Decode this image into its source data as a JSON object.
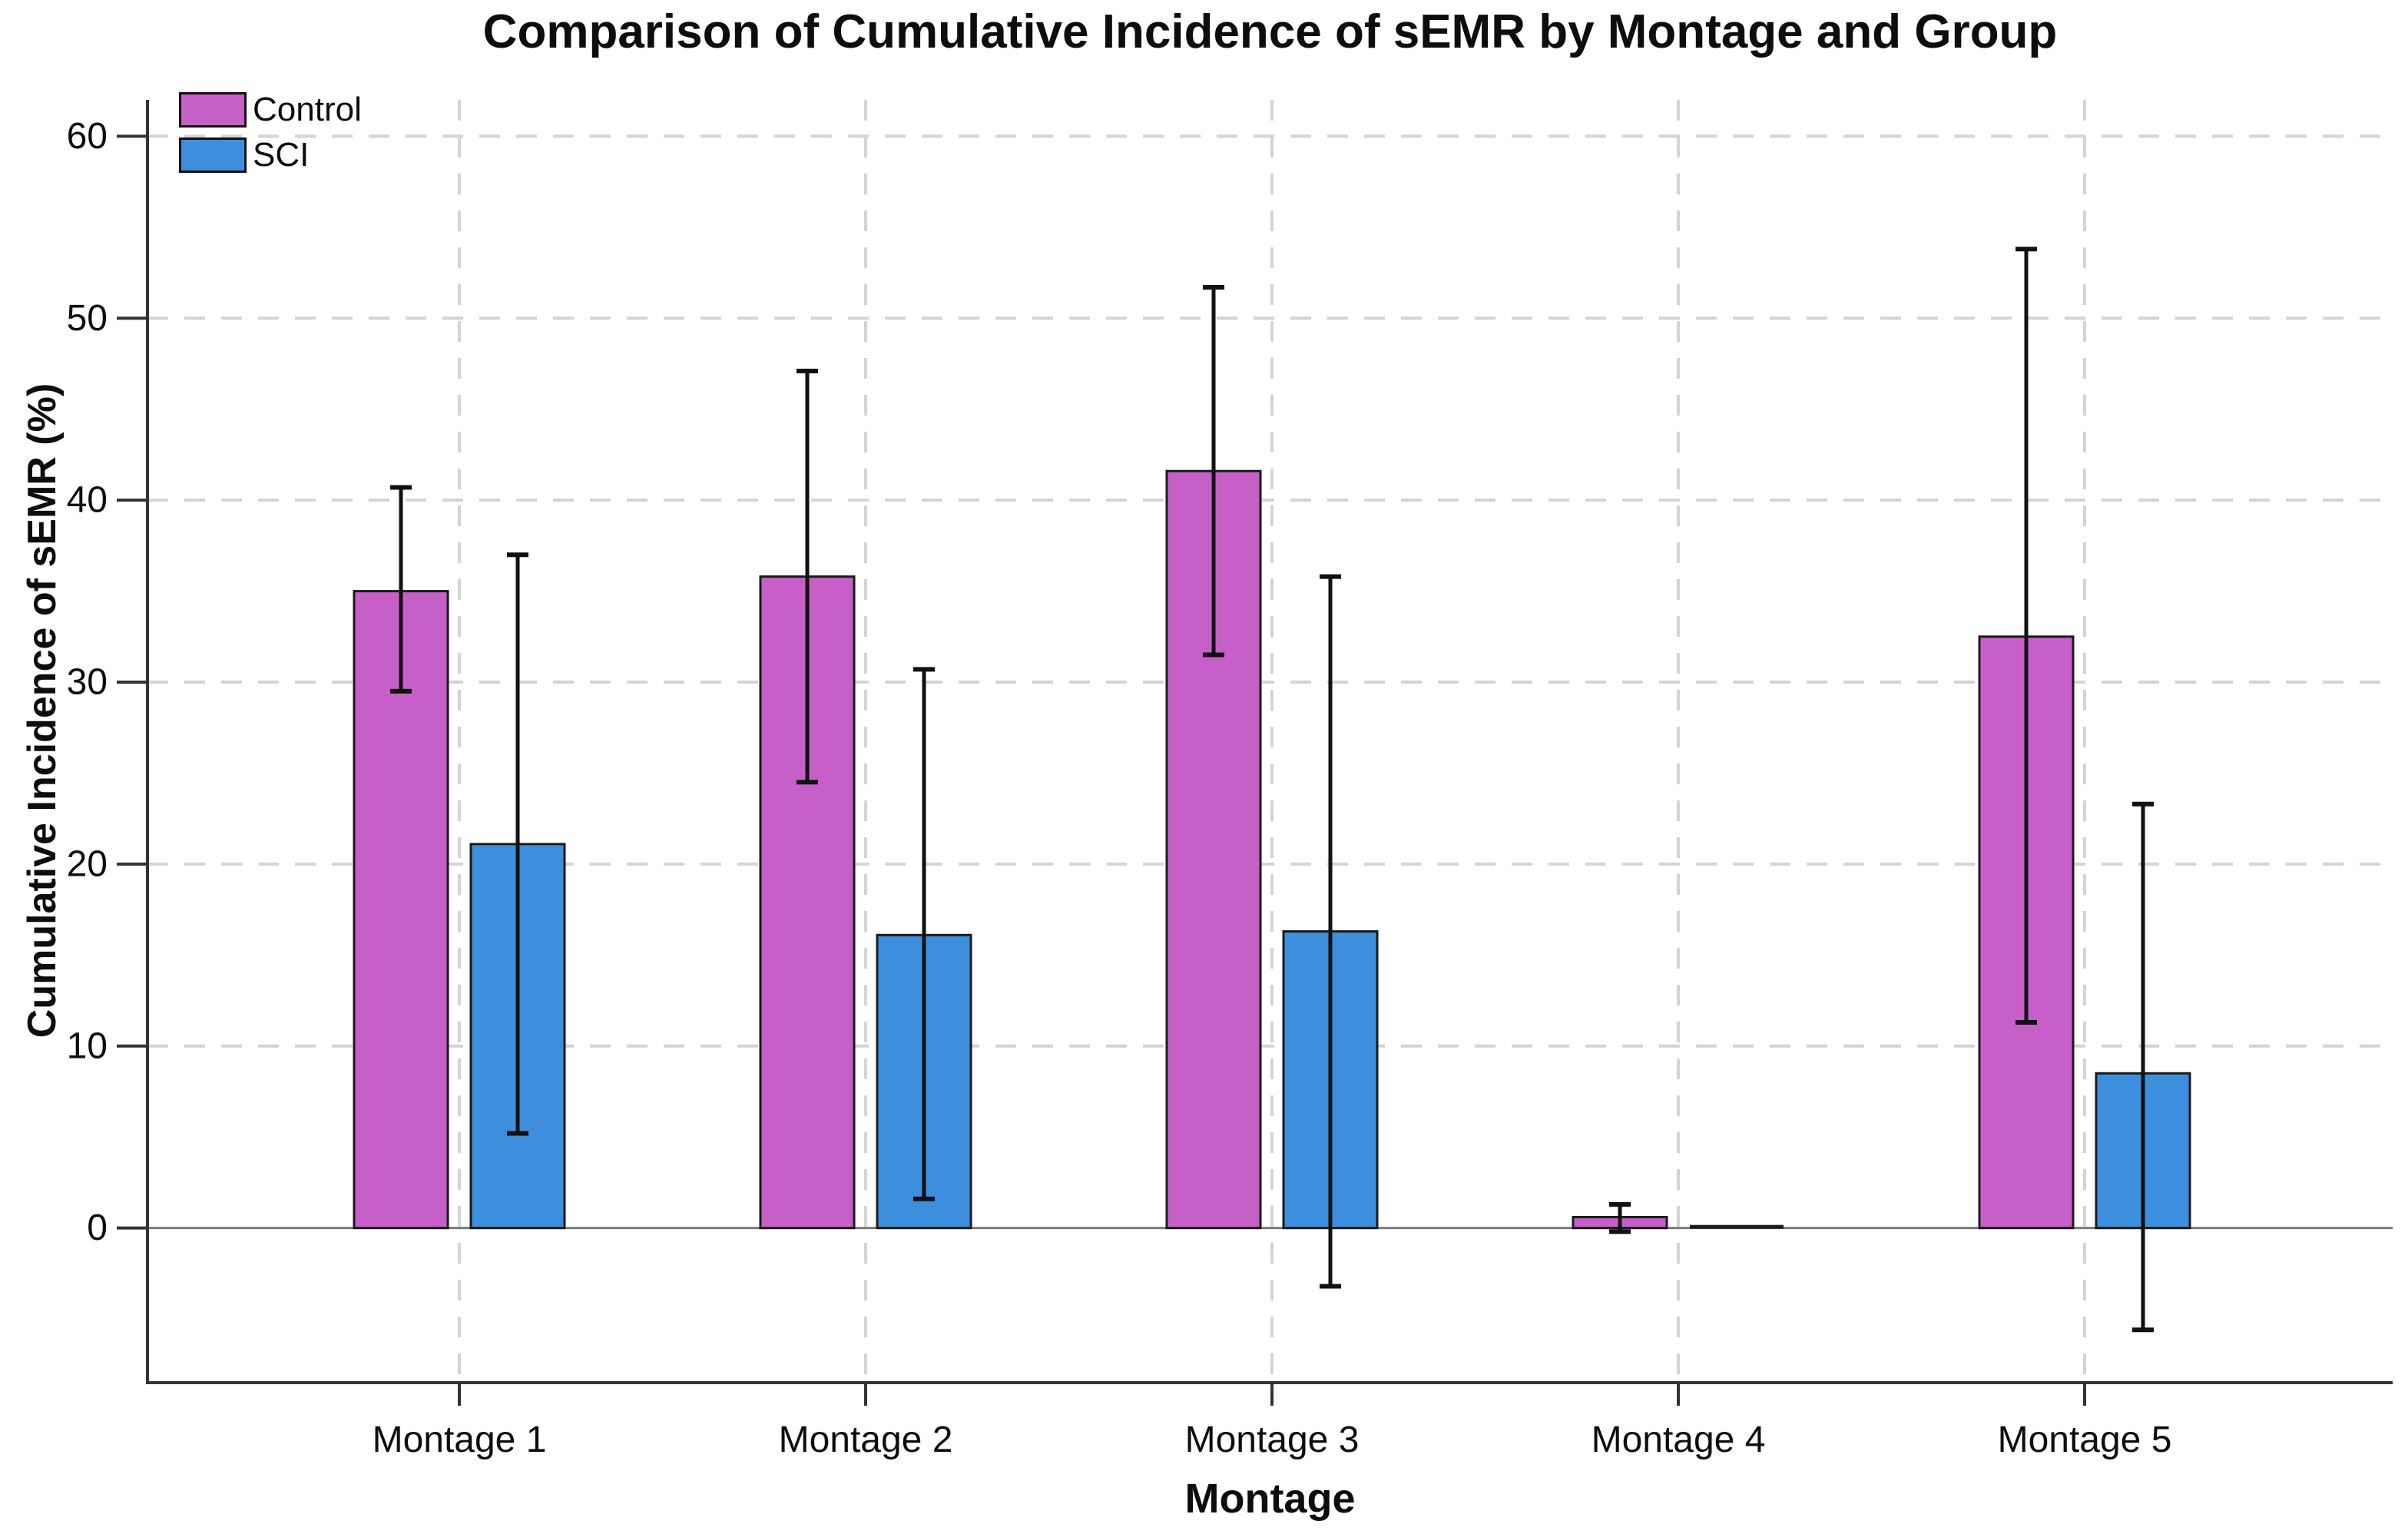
{
  "chart_data": {
    "type": "bar",
    "title": "Comparison of Cumulative Incidence of sEMR by Montage and Group",
    "xlabel": "Montage",
    "ylabel": "Cumulative Incidence of sEMR (%)",
    "categories": [
      "Montage 1",
      "Montage 2",
      "Montage 3",
      "Montage 4",
      "Montage 5"
    ],
    "yticks": [
      0,
      10,
      20,
      30,
      40,
      50,
      60
    ],
    "ylim": [
      -8.5,
      62
    ],
    "grid": "dashed light-grey, horizontal at each ytick and vertical at each category center",
    "legend_position": "upper-left inside plot",
    "error_bars": true,
    "series": [
      {
        "name": "Control",
        "color": "#c660c8",
        "values": [
          35.0,
          35.8,
          41.6,
          0.6,
          32.5
        ],
        "err_low": [
          29.5,
          24.5,
          31.5,
          -0.2,
          11.3
        ],
        "err_high": [
          40.7,
          47.1,
          51.7,
          1.3,
          53.8
        ]
      },
      {
        "name": "SCI",
        "color": "#3e8ede",
        "values": [
          21.1,
          16.1,
          16.3,
          0.0,
          8.5
        ],
        "err_low": [
          5.2,
          1.6,
          -3.2,
          0.0,
          -5.6
        ],
        "err_high": [
          37.0,
          30.7,
          35.8,
          0.0,
          23.3
        ]
      }
    ]
  },
  "colors": {
    "background": "#ffffff",
    "bar_edge": "#1a1a1a",
    "error_bar": "#111111",
    "gridline": "#d4d4d4",
    "axis_spine": "#333333",
    "zero_line": "#7a7a7a",
    "text": "#0d0d0d"
  }
}
